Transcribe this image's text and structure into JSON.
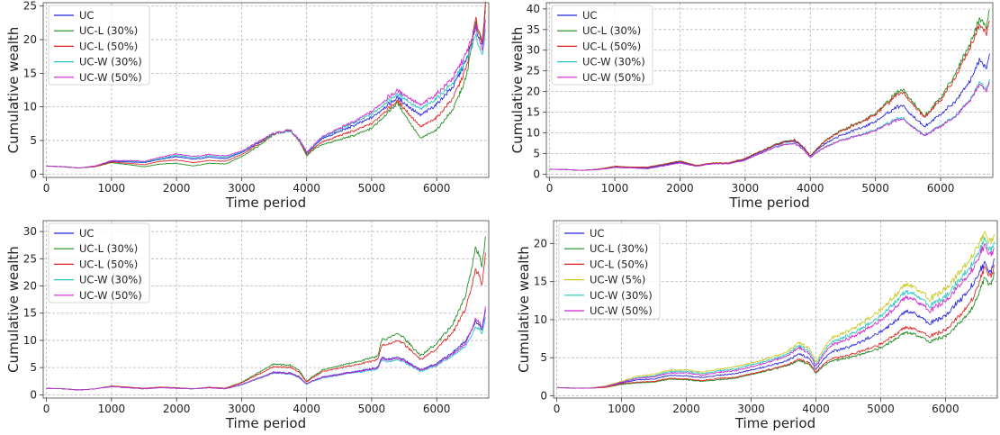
{
  "chart_data": [
    {
      "type": "line",
      "panel": "top-left",
      "xlabel": "Time period",
      "ylabel": "Cumulative wealth",
      "xlim": [
        -50,
        6800
      ],
      "ylim": [
        -0.5,
        25.5
      ],
      "xticks": [
        0,
        1000,
        2000,
        3000,
        4000,
        5000,
        6000
      ],
      "yticks": [
        0,
        5,
        10,
        15,
        20,
        25
      ],
      "grid": true,
      "legend_position": "upper-left",
      "x": [
        0,
        250,
        500,
        750,
        1000,
        1250,
        1500,
        1750,
        2000,
        2250,
        2500,
        2750,
        3000,
        3250,
        3500,
        3750,
        3900,
        4000,
        4100,
        4250,
        4500,
        4750,
        5000,
        5250,
        5400,
        5500,
        5750,
        6000,
        6250,
        6450,
        6600,
        6700,
        6750
      ],
      "series": [
        {
          "name": "UC",
          "color": "#2020e0",
          "values": [
            1.2,
            1.1,
            0.9,
            1.2,
            1.9,
            1.8,
            1.7,
            2.2,
            2.6,
            2.2,
            2.5,
            2.3,
            3.2,
            4.6,
            6.0,
            6.4,
            4.9,
            3.1,
            4.0,
            5.3,
            6.3,
            7.3,
            8.4,
            10.3,
            11.4,
            10.6,
            8.7,
            10.4,
            13.0,
            16.8,
            21.5,
            19.5,
            24.0
          ]
        },
        {
          "name": "UC-L (30%)",
          "color": "#1a8a1a",
          "values": [
            1.2,
            1.1,
            0.9,
            1.1,
            1.7,
            1.4,
            1.1,
            1.5,
            1.6,
            1.2,
            1.6,
            1.5,
            2.6,
            4.1,
            5.9,
            6.6,
            4.7,
            2.7,
            3.6,
            4.4,
            5.1,
            5.8,
            6.8,
            9.2,
            10.6,
            9.0,
            5.3,
            6.6,
            9.6,
            14.2,
            22.5,
            19.5,
            24.5
          ]
        },
        {
          "name": "UC-L (50%)",
          "color": "#e02020",
          "values": [
            1.2,
            1.1,
            0.9,
            1.1,
            1.8,
            1.6,
            1.4,
            1.9,
            2.1,
            1.7,
            2.0,
            1.9,
            2.9,
            4.4,
            6.0,
            6.5,
            4.8,
            2.9,
            3.8,
            4.8,
            5.7,
            6.5,
            7.5,
            9.7,
            10.9,
            9.8,
            7.0,
            8.4,
            11.3,
            15.6,
            23.0,
            19.8,
            25.0
          ]
        },
        {
          "name": "UC-W (30%)",
          "color": "#20c8c0",
          "values": [
            1.2,
            1.1,
            0.9,
            1.2,
            2.0,
            1.9,
            1.8,
            2.3,
            2.8,
            2.4,
            2.7,
            2.5,
            3.3,
            4.7,
            6.0,
            6.4,
            4.9,
            3.2,
            4.1,
            5.5,
            6.6,
            7.7,
            8.9,
            10.9,
            11.9,
            11.3,
            9.6,
            11.3,
            13.6,
            17.0,
            20.5,
            17.8,
            21.0
          ]
        },
        {
          "name": "UC-W (50%)",
          "color": "#d020d0",
          "values": [
            1.2,
            1.1,
            0.9,
            1.2,
            2.0,
            2.0,
            1.9,
            2.5,
            3.0,
            2.6,
            2.9,
            2.7,
            3.4,
            4.8,
            6.1,
            6.5,
            5.0,
            3.3,
            4.2,
            5.6,
            6.8,
            7.9,
            9.3,
            11.4,
            12.4,
            11.9,
            10.2,
            11.9,
            14.3,
            17.8,
            21.8,
            18.6,
            22.5
          ]
        }
      ]
    },
    {
      "type": "line",
      "panel": "top-right",
      "xlabel": "Time period",
      "ylabel": "Cumulative wealth",
      "xlim": [
        -50,
        6800
      ],
      "ylim": [
        -0.8,
        41.5
      ],
      "xticks": [
        0,
        1000,
        2000,
        3000,
        4000,
        5000,
        6000
      ],
      "yticks": [
        0,
        5,
        10,
        15,
        20,
        25,
        30,
        35,
        40
      ],
      "grid": true,
      "legend_position": "upper-left",
      "x": [
        0,
        250,
        500,
        750,
        1000,
        1250,
        1500,
        1750,
        2000,
        2250,
        2500,
        2750,
        3000,
        3250,
        3500,
        3750,
        3900,
        4000,
        4100,
        4250,
        4500,
        4750,
        5000,
        5250,
        5400,
        5500,
        5750,
        6000,
        6250,
        6450,
        6600,
        6700,
        6750
      ],
      "series": [
        {
          "name": "UC",
          "color": "#2020e0",
          "values": [
            1.2,
            1.1,
            0.9,
            1.2,
            1.8,
            1.6,
            1.5,
            2.2,
            2.9,
            2.0,
            2.6,
            2.6,
            3.6,
            5.4,
            7.2,
            8.1,
            6.3,
            4.3,
            5.8,
            7.6,
            9.6,
            11.0,
            12.8,
            15.4,
            16.8,
            15.2,
            11.5,
            14.5,
            18.0,
            22.5,
            28.0,
            25.5,
            29.0
          ]
        },
        {
          "name": "UC-L (30%)",
          "color": "#1a8a1a",
          "values": [
            1.2,
            1.1,
            0.9,
            1.2,
            1.9,
            1.7,
            1.7,
            2.4,
            3.2,
            2.1,
            2.7,
            2.7,
            3.8,
            5.6,
            7.4,
            8.4,
            6.5,
            4.4,
            6.1,
            8.4,
            10.8,
            12.5,
            14.7,
            18.5,
            20.7,
            19.0,
            14.0,
            18.5,
            25.0,
            31.5,
            38.0,
            35.5,
            40.0
          ]
        },
        {
          "name": "UC-L (50%)",
          "color": "#e02020",
          "values": [
            1.2,
            1.1,
            0.9,
            1.2,
            1.9,
            1.7,
            1.7,
            2.4,
            3.1,
            2.1,
            2.7,
            2.7,
            3.8,
            5.6,
            7.3,
            8.3,
            6.5,
            4.4,
            6.0,
            8.3,
            10.6,
            12.3,
            14.5,
            18.0,
            20.0,
            18.3,
            13.8,
            17.9,
            24.0,
            30.5,
            36.5,
            34.0,
            37.5
          ]
        },
        {
          "name": "UC-W (30%)",
          "color": "#20c8c0",
          "values": [
            1.2,
            1.1,
            0.9,
            1.1,
            1.6,
            1.5,
            1.3,
            2.0,
            2.7,
            1.9,
            2.5,
            2.5,
            3.4,
            5.1,
            6.8,
            7.6,
            5.9,
            4.0,
            5.3,
            6.8,
            8.4,
            9.4,
            10.8,
            12.8,
            13.8,
            12.5,
            9.5,
            11.8,
            14.5,
            18.0,
            22.5,
            20.5,
            23.0
          ]
        },
        {
          "name": "UC-W (50%)",
          "color": "#d020d0",
          "values": [
            1.2,
            1.1,
            0.9,
            1.1,
            1.6,
            1.5,
            1.3,
            2.0,
            2.7,
            1.9,
            2.5,
            2.5,
            3.4,
            5.1,
            6.7,
            7.5,
            5.9,
            4.0,
            5.2,
            6.7,
            8.3,
            9.3,
            10.6,
            12.5,
            13.5,
            12.3,
            9.3,
            11.6,
            14.2,
            17.8,
            22.0,
            20.0,
            22.5
          ]
        }
      ]
    },
    {
      "type": "line",
      "panel": "bottom-left",
      "xlabel": "Time period",
      "ylabel": "Cumulative wealth",
      "xlim": [
        -50,
        6800
      ],
      "ylim": [
        -0.6,
        32
      ],
      "xticks": [
        0,
        1000,
        2000,
        3000,
        4000,
        5000,
        6000
      ],
      "yticks": [
        0,
        5,
        10,
        15,
        20,
        25,
        30
      ],
      "grid": true,
      "legend_position": "upper-left",
      "x": [
        0,
        250,
        500,
        750,
        1000,
        1250,
        1500,
        1750,
        2000,
        2250,
        2500,
        2750,
        3000,
        3250,
        3500,
        3750,
        3900,
        4000,
        4100,
        4250,
        4500,
        4750,
        5000,
        5100,
        5150,
        5250,
        5400,
        5500,
        5750,
        6000,
        6250,
        6450,
        6600,
        6700,
        6750
      ],
      "series": [
        {
          "name": "UC",
          "color": "#2020e0",
          "values": [
            1.2,
            1.1,
            0.9,
            1.1,
            1.5,
            1.3,
            1.1,
            1.3,
            1.2,
            1.1,
            1.3,
            1.1,
            1.9,
            3.0,
            4.2,
            4.0,
            3.2,
            2.0,
            2.6,
            3.3,
            3.8,
            4.3,
            4.8,
            5.0,
            6.8,
            6.6,
            6.9,
            6.4,
            4.6,
            5.8,
            7.8,
            10.0,
            13.5,
            12.0,
            16.0
          ]
        },
        {
          "name": "UC-L (30%)",
          "color": "#1a8a1a",
          "values": [
            1.2,
            1.1,
            0.9,
            1.1,
            1.6,
            1.4,
            1.2,
            1.4,
            1.3,
            1.1,
            1.4,
            1.2,
            2.3,
            4.0,
            5.7,
            5.4,
            4.3,
            2.4,
            3.4,
            4.6,
            5.3,
            6.0,
            6.8,
            7.1,
            10.0,
            10.5,
            11.3,
            10.4,
            7.2,
            9.5,
            13.0,
            18.5,
            27.0,
            24.0,
            29.5
          ]
        },
        {
          "name": "UC-L (50%)",
          "color": "#e02020",
          "values": [
            1.2,
            1.1,
            0.9,
            1.1,
            1.6,
            1.4,
            1.2,
            1.4,
            1.3,
            1.1,
            1.4,
            1.2,
            2.2,
            3.7,
            5.2,
            5.0,
            4.0,
            2.3,
            3.2,
            4.3,
            4.9,
            5.5,
            6.2,
            6.5,
            9.0,
            9.3,
            10.0,
            9.3,
            6.5,
            8.5,
            11.5,
            16.0,
            23.0,
            20.5,
            26.5
          ]
        },
        {
          "name": "UC-W (30%)",
          "color": "#20c8c0",
          "values": [
            1.2,
            1.1,
            0.9,
            1.1,
            1.5,
            1.3,
            1.1,
            1.3,
            1.2,
            1.1,
            1.3,
            1.1,
            1.8,
            2.9,
            4.0,
            3.8,
            3.0,
            1.9,
            2.5,
            3.1,
            3.6,
            4.1,
            4.5,
            4.7,
            6.3,
            6.1,
            6.4,
            6.0,
            4.3,
            5.4,
            7.2,
            9.0,
            12.5,
            11.5,
            14.5
          ]
        },
        {
          "name": "UC-W (50%)",
          "color": "#d020d0",
          "values": [
            1.2,
            1.1,
            0.9,
            1.1,
            1.5,
            1.3,
            1.1,
            1.3,
            1.2,
            1.1,
            1.3,
            1.1,
            1.9,
            3.0,
            4.1,
            3.9,
            3.1,
            2.0,
            2.6,
            3.2,
            3.7,
            4.2,
            4.7,
            4.9,
            6.6,
            6.4,
            6.7,
            6.2,
            4.5,
            5.6,
            7.5,
            9.5,
            14.0,
            12.5,
            16.5
          ]
        }
      ]
    },
    {
      "type": "line",
      "panel": "bottom-right",
      "xlabel": "Time period",
      "ylabel": "Cumulative wealth",
      "xlim": [
        -50,
        6800
      ],
      "ylim": [
        -0.3,
        23
      ],
      "xticks": [
        0,
        1000,
        2000,
        3000,
        4000,
        5000,
        6000
      ],
      "yticks": [
        0,
        5,
        10,
        15,
        20
      ],
      "grid": true,
      "legend_position": "upper-left",
      "x": [
        0,
        250,
        500,
        750,
        1000,
        1250,
        1500,
        1750,
        2000,
        2250,
        2500,
        2750,
        3000,
        3250,
        3500,
        3750,
        3900,
        4000,
        4100,
        4250,
        4500,
        4750,
        5000,
        5250,
        5400,
        5500,
        5750,
        6000,
        6250,
        6450,
        6600,
        6700,
        6750
      ],
      "series": [
        {
          "name": "UC",
          "color": "#2020e0",
          "values": [
            1.1,
            1.0,
            1.0,
            1.2,
            1.7,
            2.1,
            2.2,
            2.7,
            2.6,
            2.4,
            2.7,
            2.9,
            3.4,
            3.9,
            4.4,
            5.5,
            4.9,
            3.4,
            4.6,
            5.8,
            6.4,
            7.3,
            8.4,
            10.0,
            11.2,
            11.0,
            9.5,
            10.5,
            12.8,
            15.0,
            17.5,
            16.0,
            18.0
          ]
        },
        {
          "name": "UC-L (30%)",
          "color": "#1a8a1a",
          "values": [
            1.1,
            1.0,
            1.0,
            1.1,
            1.5,
            1.7,
            1.8,
            2.2,
            2.1,
            1.9,
            2.1,
            2.3,
            2.8,
            3.3,
            3.8,
            4.6,
            4.1,
            2.9,
            3.8,
            4.6,
            5.0,
            5.6,
            6.3,
            7.6,
            8.4,
            8.2,
            7.1,
            7.8,
            9.8,
            12.0,
            15.5,
            14.5,
            16.0
          ]
        },
        {
          "name": "UC-L (50%)",
          "color": "#e02020",
          "values": [
            1.1,
            1.0,
            1.0,
            1.1,
            1.6,
            1.8,
            1.9,
            2.3,
            2.2,
            2.0,
            2.3,
            2.4,
            2.9,
            3.4,
            3.9,
            4.8,
            4.3,
            3.0,
            4.0,
            4.9,
            5.3,
            6.0,
            6.8,
            8.2,
            9.1,
            8.9,
            7.8,
            8.6,
            10.8,
            13.2,
            16.8,
            15.5,
            17.0
          ]
        },
        {
          "name": "UC-W (5%)",
          "color": "#c8c820",
          "values": [
            1.1,
            1.0,
            1.0,
            1.3,
            1.9,
            2.6,
            2.8,
            3.4,
            3.4,
            3.1,
            3.5,
            3.8,
            4.3,
            4.9,
            5.5,
            7.0,
            6.2,
            4.3,
            5.9,
            7.6,
            8.5,
            9.8,
            11.3,
            13.4,
            14.8,
            14.5,
            12.7,
            14.0,
            16.5,
            18.8,
            21.3,
            20.0,
            21.0
          ]
        },
        {
          "name": "UC-W (30%)",
          "color": "#20c8c0",
          "values": [
            1.1,
            1.0,
            1.0,
            1.2,
            1.8,
            2.4,
            2.6,
            3.2,
            3.2,
            2.9,
            3.3,
            3.5,
            4.1,
            4.6,
            5.2,
            6.6,
            5.8,
            4.0,
            5.5,
            7.1,
            7.9,
            9.1,
            10.5,
            12.5,
            13.8,
            13.5,
            11.8,
            13.0,
            15.5,
            17.8,
            20.5,
            19.0,
            20.0
          ]
        },
        {
          "name": "UC-W (50%)",
          "color": "#d020d0",
          "values": [
            1.1,
            1.0,
            1.0,
            1.2,
            1.8,
            2.3,
            2.5,
            3.0,
            3.0,
            2.7,
            3.1,
            3.3,
            3.8,
            4.4,
            5.0,
            6.3,
            5.5,
            3.8,
            5.2,
            6.7,
            7.5,
            8.6,
            9.9,
            11.8,
            13.1,
            12.8,
            11.2,
            12.4,
            14.8,
            17.0,
            19.8,
            18.3,
            19.4
          ]
        }
      ]
    }
  ]
}
